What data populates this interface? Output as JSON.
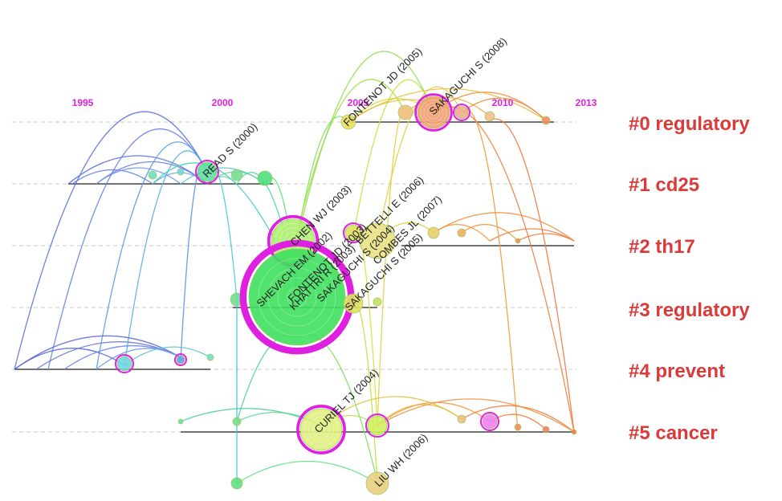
{
  "colors": {
    "year_label": "#e020e0",
    "cluster_label": "#d93a3a",
    "citation_ring": "#e020e0",
    "dashed_line": "#c8c8c8",
    "cluster_line": "#444444"
  },
  "years": [
    "1995",
    "2000",
    "2005",
    "2010",
    "2013"
  ],
  "clusters": [
    {
      "id": "#0",
      "label": "#0 regulatory"
    },
    {
      "id": "#1",
      "label": "#1 cd25"
    },
    {
      "id": "#2",
      "label": "#2 th17"
    },
    {
      "id": "#3",
      "label": "#3 regulatory"
    },
    {
      "id": "#4",
      "label": "#4 prevent"
    },
    {
      "id": "#5",
      "label": "#5 cancer"
    }
  ],
  "reference_labels": [
    "FONTENOT JD (2005)",
    "SAKAGUCHI S (2008)",
    "READ S (2000)",
    "CHEN WJ (2003)",
    "SHEVACH EM (2002)",
    "FONTENOT JD (2003)",
    "KHATTRI R (2003)",
    "SAKAGUCHI S (2004)",
    "BETTELLI E (2006)",
    "SAKAGUCHI S (2005)",
    "COMBES JL (2007)",
    "CURIEL TJ (2004)",
    "LIU WH (2006)"
  ]
}
